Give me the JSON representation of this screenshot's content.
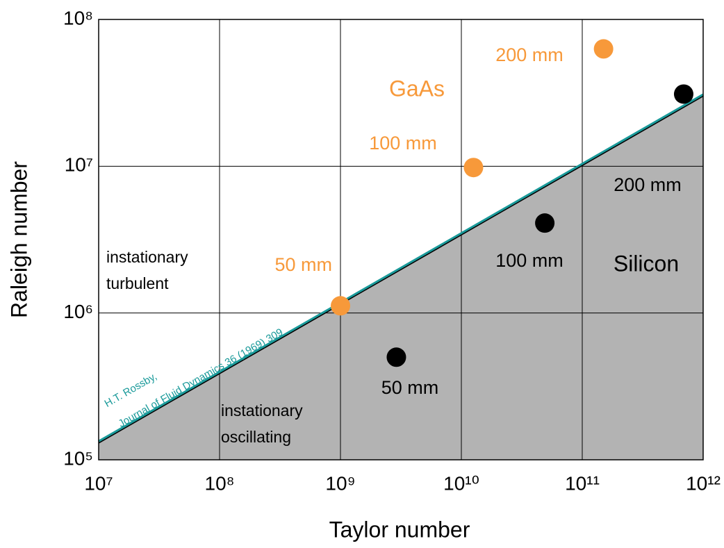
{
  "chart_data": {
    "type": "scatter",
    "x_label": "Taylor number",
    "y_label": "Raleigh number",
    "log_x": true,
    "log_y": true,
    "grid": true,
    "xlim": [
      10000000,
      1000000000000
    ],
    "ylim": [
      100000,
      100000000
    ],
    "xticks": [
      {
        "value": 10000000,
        "label": "10⁷"
      },
      {
        "value": 100000000,
        "label": "10⁸"
      },
      {
        "value": 1000000000,
        "label": "10⁹"
      },
      {
        "value": 10000000000,
        "label": "10¹⁰"
      },
      {
        "value": 100000000000,
        "label": "10¹¹"
      },
      {
        "value": 1000000000000,
        "label": "10¹²"
      }
    ],
    "yticks": [
      {
        "value": 100000,
        "label": "10⁵"
      },
      {
        "value": 1000000,
        "label": "10⁶"
      },
      {
        "value": 10000000,
        "label": "10⁷"
      },
      {
        "value": 100000000,
        "label": "10⁸"
      }
    ],
    "series": [
      {
        "name": "GaAs",
        "color": "#f7993a",
        "x": [
          1000000000,
          12600000000,
          150000000000
        ],
        "values": [
          1120000,
          9800000,
          63000000
        ],
        "labels": [
          "50 mm",
          "100 mm",
          "200 mm"
        ]
      },
      {
        "name": "Silicon",
        "color": "#000000",
        "x": [
          2900000000,
          49000000000,
          690000000000
        ],
        "values": [
          500000,
          4100000,
          31000000
        ],
        "labels": [
          "50 mm",
          "100 mm",
          "200 mm"
        ]
      }
    ],
    "boundary": {
      "x": [
        10000000,
        1000000000000
      ],
      "values": [
        130000,
        30000000
      ],
      "color": "#1a9a9a",
      "fill": "#b3b3b3",
      "annotation": [
        "H.T. Rossby,",
        "Journal of Fluid Dynamics 36 (1969) 309"
      ]
    },
    "annotations": [
      [
        "instationary",
        "turbulent"
      ],
      [
        "instationary",
        "oscillating"
      ]
    ]
  }
}
